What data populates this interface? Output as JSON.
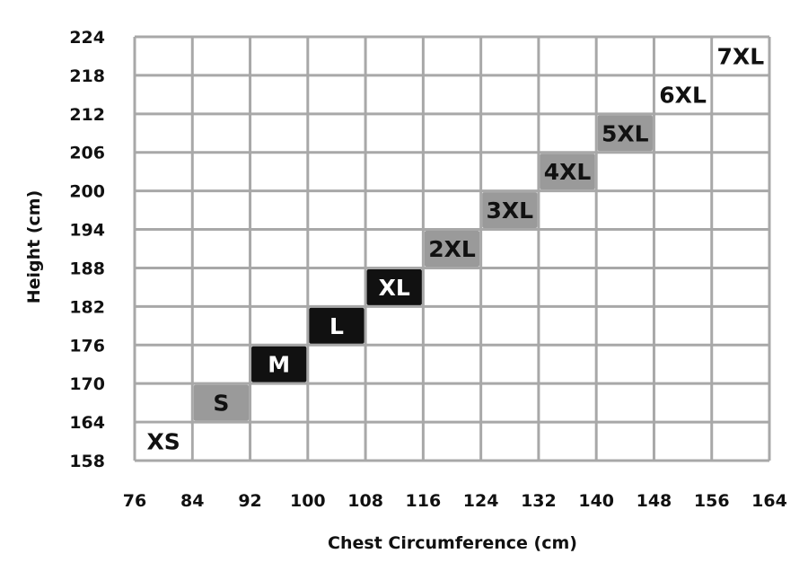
{
  "chart_data": {
    "type": "heatmap",
    "xlabel": "Chest Circumference (cm)",
    "ylabel": "Height (cm)",
    "x_ticks": [
      76,
      84,
      92,
      100,
      108,
      116,
      124,
      132,
      140,
      148,
      156,
      164
    ],
    "y_ticks": [
      158,
      164,
      170,
      176,
      182,
      188,
      194,
      200,
      206,
      212,
      218,
      224
    ],
    "xlim": [
      76,
      164
    ],
    "ylim": [
      158,
      224
    ],
    "grid": true,
    "sizes": [
      {
        "label": "XS",
        "chest": [
          76,
          84
        ],
        "height": [
          158,
          164
        ],
        "fill": "#ffffff",
        "text": "#111111"
      },
      {
        "label": "S",
        "chest": [
          84,
          92
        ],
        "height": [
          164,
          170
        ],
        "fill": "#9a9a9a",
        "text": "#111111"
      },
      {
        "label": "M",
        "chest": [
          92,
          100
        ],
        "height": [
          170,
          176
        ],
        "fill": "#111111",
        "text": "#ffffff"
      },
      {
        "label": "L",
        "chest": [
          100,
          108
        ],
        "height": [
          176,
          182
        ],
        "fill": "#111111",
        "text": "#ffffff"
      },
      {
        "label": "XL",
        "chest": [
          108,
          116
        ],
        "height": [
          182,
          188
        ],
        "fill": "#111111",
        "text": "#ffffff"
      },
      {
        "label": "2XL",
        "chest": [
          116,
          124
        ],
        "height": [
          188,
          194
        ],
        "fill": "#9a9a9a",
        "text": "#111111"
      },
      {
        "label": "3XL",
        "chest": [
          124,
          132
        ],
        "height": [
          194,
          200
        ],
        "fill": "#9a9a9a",
        "text": "#111111"
      },
      {
        "label": "4XL",
        "chest": [
          132,
          140
        ],
        "height": [
          200,
          206
        ],
        "fill": "#9a9a9a",
        "text": "#111111"
      },
      {
        "label": "5XL",
        "chest": [
          140,
          148
        ],
        "height": [
          206,
          212
        ],
        "fill": "#9a9a9a",
        "text": "#111111"
      },
      {
        "label": "6XL",
        "chest": [
          148,
          156
        ],
        "height": [
          212,
          218
        ],
        "fill": "#ffffff",
        "text": "#111111"
      },
      {
        "label": "7XL",
        "chest": [
          156,
          164
        ],
        "height": [
          218,
          224
        ],
        "fill": "#ffffff",
        "text": "#111111"
      }
    ],
    "colors": {
      "grid": "#a8a8a8",
      "text": "#111111"
    }
  }
}
